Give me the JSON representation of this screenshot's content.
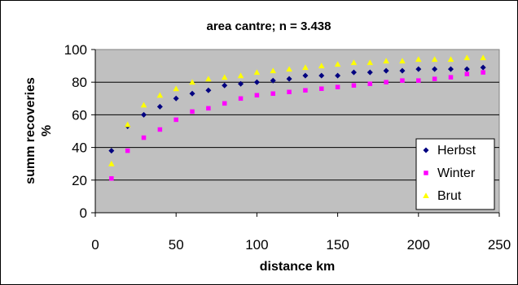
{
  "chart_data": {
    "type": "scatter",
    "title": "area cantre; n = 3.438",
    "xlabel": "distance km",
    "ylabel": "summ recoveries %",
    "ylabel_lines": [
      "summ recoveries",
      "%"
    ],
    "xlim": [
      0,
      250
    ],
    "ylim": [
      0,
      100
    ],
    "xticks": [
      0,
      50,
      100,
      150,
      200,
      250
    ],
    "yticks": [
      0,
      20,
      40,
      60,
      80,
      100
    ],
    "grid": "horizontal",
    "plot_background": "#c0c0c0",
    "legend_position": "right",
    "x": [
      10,
      20,
      30,
      40,
      50,
      60,
      70,
      80,
      90,
      100,
      110,
      120,
      130,
      140,
      150,
      160,
      170,
      180,
      190,
      200,
      210,
      220,
      230,
      240
    ],
    "series": [
      {
        "name": "Herbst",
        "color": "#000080",
        "marker": "diamond",
        "values": [
          38,
          53,
          60,
          65,
          70,
          73,
          75,
          78,
          79,
          80,
          81,
          82,
          84,
          84,
          84,
          86,
          86,
          87,
          87,
          88,
          88,
          88,
          88,
          89
        ]
      },
      {
        "name": "Winter",
        "color": "#ff00ff",
        "marker": "square",
        "values": [
          21,
          38,
          46,
          51,
          57,
          62,
          64,
          67,
          70,
          72,
          73,
          74,
          75,
          76,
          77,
          78,
          79,
          80,
          81,
          81,
          82,
          83,
          85,
          86
        ]
      },
      {
        "name": "Brut",
        "color": "#ffff00",
        "marker": "triangle",
        "values": [
          30,
          54,
          66,
          72,
          76,
          80,
          82,
          83,
          84,
          86,
          87,
          88,
          89,
          90,
          91,
          92,
          92,
          93,
          93,
          94,
          94,
          94,
          95,
          95
        ]
      }
    ]
  }
}
